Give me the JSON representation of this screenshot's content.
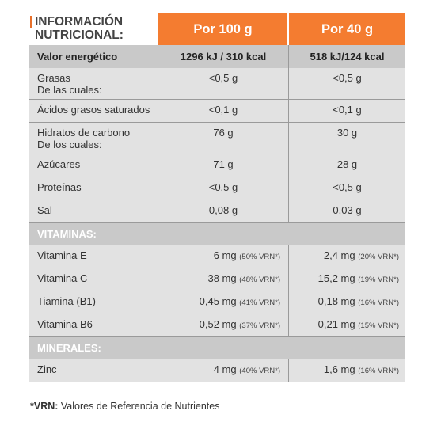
{
  "header": {
    "title_line1": "INFORMACIÓN",
    "title_line2": "NUTRICIONAL:",
    "col1": "Por 100 g",
    "col2": "Por 40 g"
  },
  "energy": {
    "label": "Valor energético",
    "v100": "1296 kJ / 310 kcal",
    "v40": "518 kJ/124 kcal"
  },
  "nutrients": [
    {
      "label1": "Grasas",
      "label2": "De las cuales:",
      "v100": "<0,5 g",
      "v40": "<0,5 g"
    },
    {
      "label1": "Ácidos grasos saturados",
      "label2": "",
      "v100": "<0,1 g",
      "v40": "<0,1 g"
    },
    {
      "label1": "Hidratos de carbono",
      "label2": "De los cuales:",
      "v100": "76 g",
      "v40": "30 g"
    },
    {
      "label1": "Azúcares",
      "label2": "",
      "v100": "71 g",
      "v40": "28 g"
    },
    {
      "label1": "Proteínas",
      "label2": "",
      "v100": "<0,5 g",
      "v40": "<0,5 g"
    },
    {
      "label1": "Sal",
      "label2": "",
      "v100": "0,08 g",
      "v40": "0,03 g"
    }
  ],
  "vitamins_title": "VITAMINAS:",
  "vitamins": [
    {
      "label": "Vitamina E",
      "v100": "6 mg",
      "r100": "(50% VRN*)",
      "v40": "2,4 mg",
      "r40": "(20% VRN*)"
    },
    {
      "label": "Vitamina C",
      "v100": "38 mg",
      "r100": "(48% VRN*)",
      "v40": "15,2 mg",
      "r40": "(19% VRN*)"
    },
    {
      "label": "Tiamina (B1)",
      "v100": "0,45 mg",
      "r100": "(41% VRN*)",
      "v40": "0,18 mg",
      "r40": "(16% VRN*)"
    },
    {
      "label": "Vitamina B6",
      "v100": "0,52 mg",
      "r100": "(37% VRN*)",
      "v40": "0,21 mg",
      "r40": "(15% VRN*)"
    }
  ],
  "minerals_title": "MINERALES:",
  "minerals": [
    {
      "label": "Zinc",
      "v100": "4 mg",
      "r100": "(40% VRN*)",
      "v40": "1,6 mg",
      "r40": "(16% VRN*)"
    }
  ],
  "footnote": {
    "bold": "*VRN:",
    "text": " Valores de Referencia de Nutrientes"
  },
  "colors": {
    "accent": "#f47c30",
    "row_bg": "#e2e2e2",
    "section_bg": "#c9c9c9"
  }
}
